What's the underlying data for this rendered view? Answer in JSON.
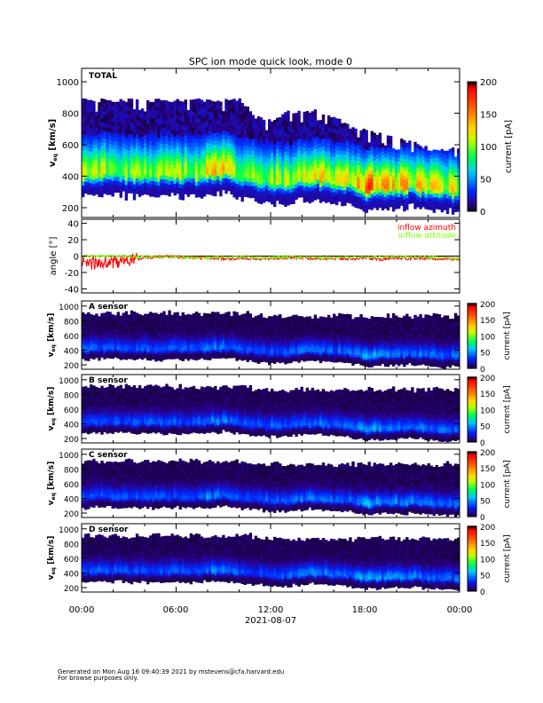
{
  "chart_data": [
    {
      "type": "heatmap",
      "title": "SPC ion mode quick look, mode 0",
      "panel_label": "TOTAL",
      "ylabel": "v_eq [km/s]",
      "yticks": [
        200,
        400,
        600,
        800,
        1000
      ],
      "ylim": [
        140,
        1080
      ],
      "colorbar_label": "current [pA]",
      "colorbar_ticks": [
        0,
        50,
        100,
        150,
        200
      ],
      "clim": [
        0,
        200
      ],
      "time_hours": [
        0,
        1,
        2,
        3,
        4,
        5,
        6,
        7,
        8,
        9,
        10,
        11,
        12,
        13,
        14,
        15,
        16,
        17,
        18,
        19,
        20,
        21,
        22,
        23,
        24
      ],
      "peak_velocity": [
        400,
        410,
        405,
        400,
        395,
        400,
        400,
        395,
        410,
        420,
        390,
        370,
        350,
        345,
        380,
        375,
        360,
        350,
        300,
        320,
        320,
        330,
        310,
        300,
        300
      ],
      "peak_current": [
        90,
        95,
        90,
        85,
        85,
        90,
        90,
        85,
        120,
        110,
        90,
        80,
        95,
        90,
        110,
        110,
        100,
        100,
        150,
        120,
        115,
        110,
        105,
        100,
        100
      ],
      "upper_edge": [
        870,
        870,
        870,
        870,
        870,
        870,
        870,
        870,
        870,
        870,
        870,
        760,
        740,
        800,
        800,
        800,
        760,
        700,
        680,
        650,
        620,
        600,
        560,
        560,
        560
      ]
    },
    {
      "type": "line",
      "ylabel": "angle [°]",
      "yticks": [
        -40,
        -20,
        0,
        20,
        40
      ],
      "ylim": [
        -45,
        45
      ],
      "series": [
        {
          "name": "inflow azimuth",
          "color": "#ff0000",
          "values": [
            -8,
            -9,
            -8,
            -5,
            -2,
            -1,
            -1,
            -2,
            -2,
            -3,
            -3,
            -3,
            -3,
            -2,
            -2,
            -3,
            -3,
            -3,
            -2,
            -4,
            -3,
            -3,
            -3,
            -3,
            -4
          ]
        },
        {
          "name": "inflow attitude",
          "color": "#7fff00",
          "values": [
            0,
            0,
            0,
            0,
            -1,
            -1,
            -1,
            -2,
            -2,
            -1,
            -1,
            -2,
            -2,
            -1,
            -1,
            -2,
            -2,
            -1,
            -1,
            -1,
            -1,
            -1,
            -1,
            -2,
            -3
          ]
        }
      ]
    },
    {
      "type": "heatmap",
      "panel_label": "A sensor",
      "ylabel": "v_eq [km/s]",
      "yticks": [
        200,
        400,
        600,
        800,
        1000
      ],
      "colorbar_label": "current [pA]",
      "colorbar_ticks": [
        0,
        50,
        100,
        150,
        200
      ]
    },
    {
      "type": "heatmap",
      "panel_label": "B sensor",
      "ylabel": "v_eq [km/s]",
      "yticks": [
        200,
        400,
        600,
        800,
        1000
      ],
      "colorbar_label": "current [pA]",
      "colorbar_ticks": [
        0,
        50,
        100,
        150,
        200
      ]
    },
    {
      "type": "heatmap",
      "panel_label": "C sensor",
      "ylabel": "v_eq [km/s]",
      "yticks": [
        200,
        400,
        600,
        800,
        1000
      ],
      "colorbar_label": "current [pA]",
      "colorbar_ticks": [
        0,
        50,
        100,
        150,
        200
      ]
    },
    {
      "type": "heatmap",
      "panel_label": "D sensor",
      "ylabel": "v_eq [km/s]",
      "yticks": [
        200,
        400,
        600,
        800,
        1000
      ],
      "colorbar_label": "current [pA]",
      "colorbar_ticks": [
        0,
        50,
        100,
        150,
        200
      ]
    }
  ],
  "xaxis": {
    "tick_labels": [
      "00:00",
      "06:00",
      "12:00",
      "18:00",
      "00:00"
    ],
    "date": "2021-08-07"
  },
  "footer": {
    "generated": "Generated on Mon Aug 16 09:40:39 2021 by mstevens@cfa.harvard.edu",
    "note": "For browse purposes only."
  }
}
